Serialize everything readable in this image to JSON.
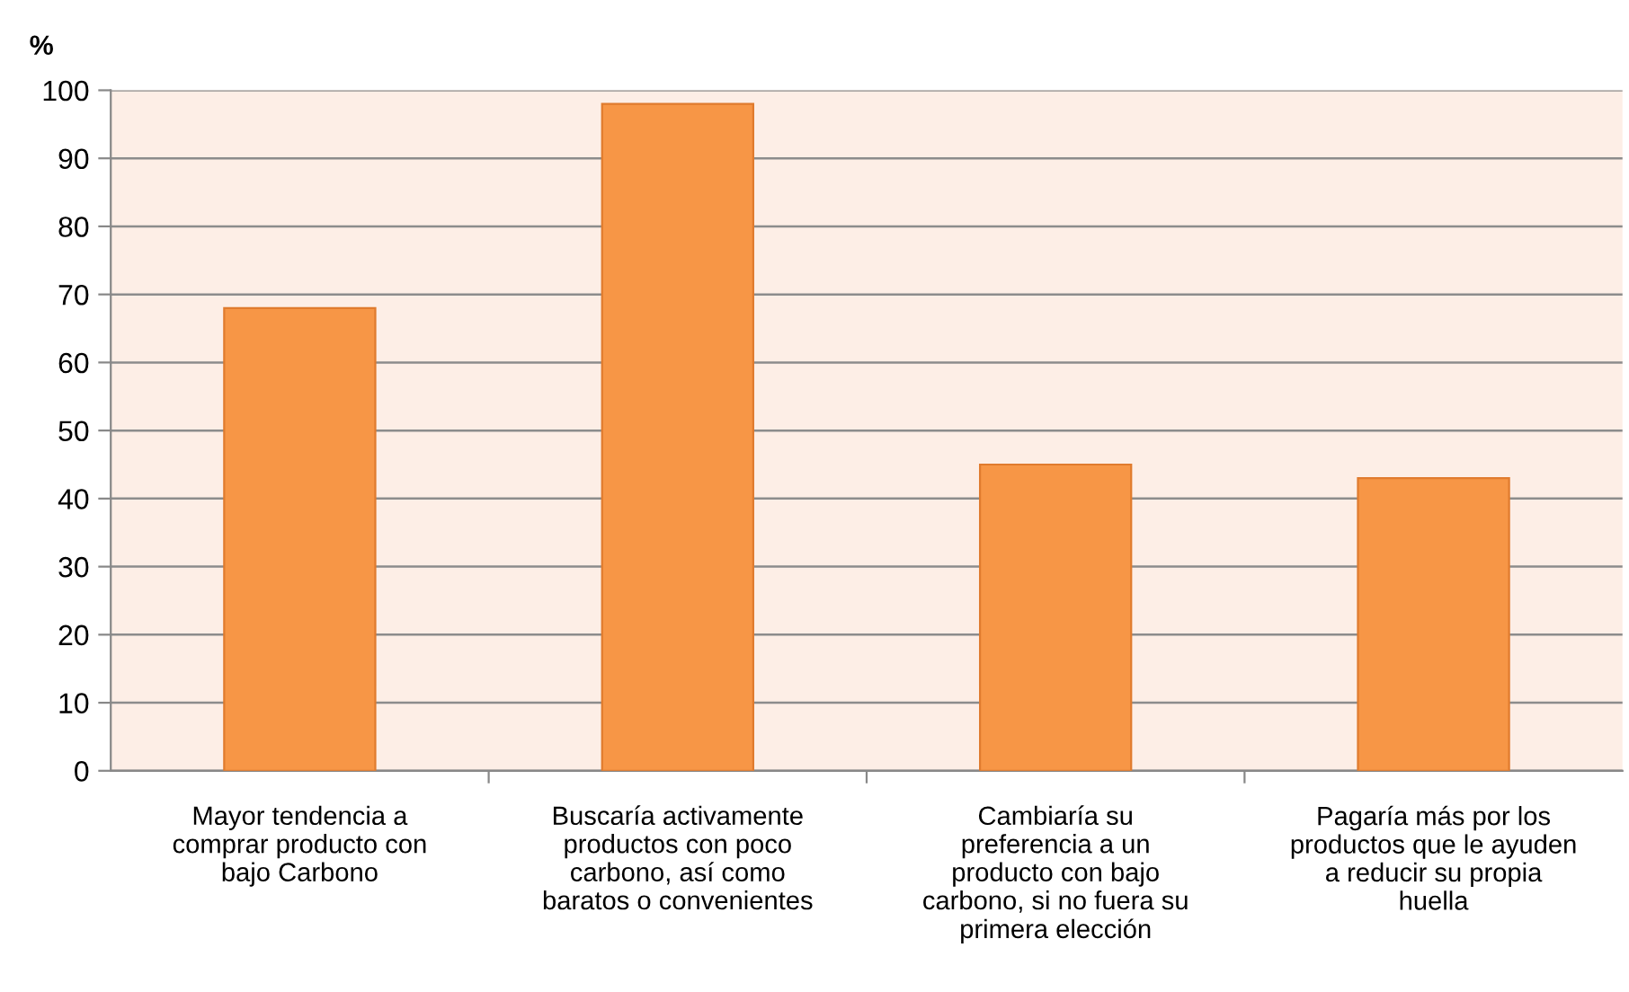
{
  "chart_data": {
    "type": "bar",
    "ylabel": "%",
    "categories": [
      "Mayor tendencia a\ncomprar producto con\nbajo Carbono",
      "Buscaría activamente\nproductos con poco\ncarbono, así como\nbaratos o convenientes",
      "Cambiaría su\npreferencia a un\nproducto con bajo\ncarbono, si no fuera su\nprimera elección",
      "Pagaría más por los\nproductos que le ayuden\na reducir su propia\nhuella"
    ],
    "values": [
      68,
      98,
      45,
      43
    ],
    "color": "#f79646",
    "ylim": [
      0,
      100
    ],
    "yticks": [
      0,
      10,
      20,
      30,
      40,
      50,
      60,
      70,
      80,
      90,
      100
    ],
    "grid": "y",
    "legend": false
  }
}
